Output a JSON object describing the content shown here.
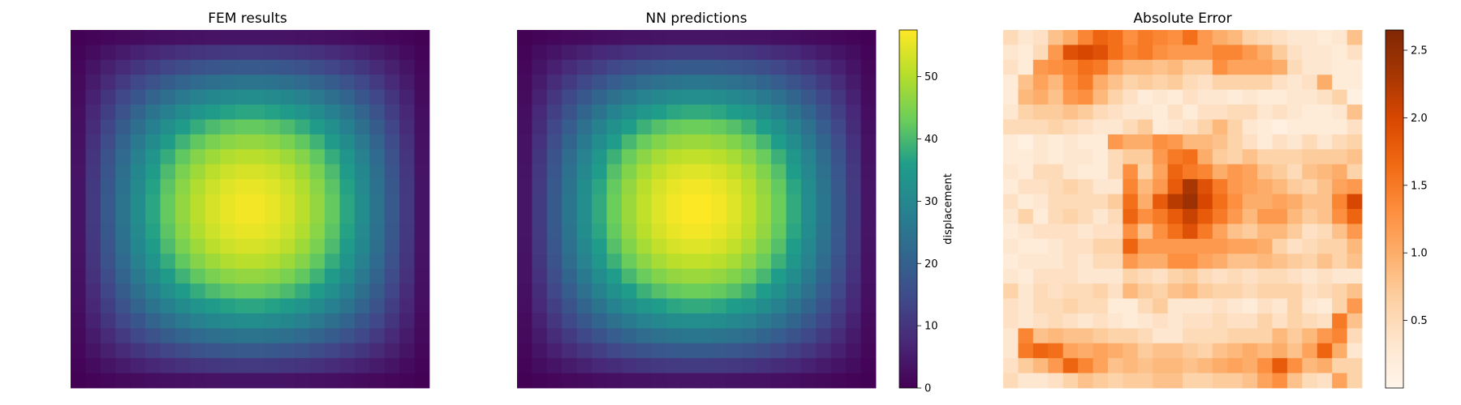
{
  "chart_data": [
    {
      "type": "heatmap",
      "title": "FEM results",
      "grid": [
        24,
        24
      ],
      "field": "displacement",
      "colormap": "viridis",
      "vmin": 0,
      "vmax": 57.5,
      "peak_value": 56.5,
      "axes_visible": false
    },
    {
      "type": "heatmap",
      "title": "NN predictions",
      "grid": [
        24,
        24
      ],
      "field": "displacement",
      "colormap": "viridis",
      "vmin": 0,
      "vmax": 57.5,
      "peak_value": 57.5,
      "axes_visible": false,
      "colorbar": {
        "label": "displacement",
        "ticks": [
          "0",
          "10",
          "20",
          "30",
          "40",
          "50"
        ],
        "tick_values": [
          0,
          10,
          20,
          30,
          40,
          50
        ],
        "range": [
          0,
          57.5
        ]
      }
    },
    {
      "type": "heatmap",
      "title": "Absolute Error",
      "grid": [
        24,
        24
      ],
      "colormap": "Oranges",
      "vmin": 0,
      "vmax": 2.65,
      "axes_visible": false,
      "colorbar": {
        "label": "",
        "ticks": [
          "0.5",
          "1.0",
          "1.5",
          "2.0",
          "2.5"
        ],
        "tick_values": [
          0.5,
          1.0,
          1.5,
          2.0,
          2.5
        ],
        "range": [
          0,
          2.65
        ]
      },
      "rows": [
        [
          0.5,
          0.3,
          0.4,
          0.8,
          1.0,
          1.4,
          1.7,
          1.6,
          1.3,
          1.5,
          1.4,
          1.3,
          1.6,
          1.2,
          1.0,
          0.9,
          0.6,
          0.5,
          0.4,
          0.3,
          0.3,
          0.2,
          0.3,
          0.8
        ],
        [
          0.3,
          0.2,
          0.5,
          1.2,
          1.9,
          2.0,
          1.9,
          1.6,
          1.4,
          1.5,
          1.3,
          1.2,
          1.2,
          1.2,
          1.4,
          1.4,
          1.2,
          1.0,
          0.7,
          0.4,
          0.3,
          0.3,
          0.2,
          0.4
        ],
        [
          0.4,
          0.2,
          1.2,
          1.3,
          1.4,
          1.6,
          1.5,
          1.1,
          0.9,
          0.9,
          0.8,
          0.9,
          0.7,
          0.7,
          1.3,
          1.1,
          1.1,
          1.1,
          1.0,
          0.5,
          0.3,
          0.3,
          0.2,
          0.2
        ],
        [
          0.2,
          0.8,
          1.1,
          0.9,
          1.3,
          1.5,
          1.0,
          0.8,
          0.6,
          0.7,
          0.6,
          0.7,
          0.5,
          0.4,
          0.6,
          0.6,
          0.6,
          0.6,
          0.4,
          0.3,
          0.4,
          1.0,
          0.2,
          0.2
        ],
        [
          0.2,
          0.9,
          1.0,
          0.8,
          1.2,
          1.3,
          0.9,
          0.6,
          0.4,
          0.2,
          0.3,
          0.2,
          0.4,
          0.3,
          0.3,
          0.2,
          0.3,
          0.2,
          0.2,
          0.3,
          0.3,
          0.4,
          0.6,
          0.1
        ],
        [
          0.3,
          0.6,
          0.7,
          0.7,
          0.8,
          0.7,
          0.5,
          0.4,
          0.3,
          0.3,
          0.2,
          0.4,
          0.2,
          0.4,
          0.4,
          0.5,
          0.5,
          0.3,
          0.4,
          0.3,
          0.2,
          0.2,
          0.3,
          0.8
        ],
        [
          0.5,
          0.5,
          0.5,
          0.6,
          0.5,
          0.4,
          0.3,
          0.3,
          0.5,
          0.7,
          0.2,
          0.3,
          0.4,
          0.6,
          0.9,
          0.6,
          0.3,
          0.2,
          0.1,
          0.2,
          0.2,
          0.2,
          0.2,
          0.4
        ],
        [
          0.2,
          0.1,
          0.3,
          0.2,
          0.3,
          0.2,
          0.2,
          1.2,
          1.0,
          1.0,
          1.3,
          1.2,
          0.9,
          0.9,
          0.8,
          0.6,
          0.4,
          0.2,
          0.4,
          0.3,
          0.5,
          0.3,
          0.5,
          0.6
        ],
        [
          0.2,
          0.2,
          0.3,
          0.2,
          0.3,
          0.3,
          0.2,
          0.5,
          0.7,
          0.7,
          1.2,
          1.5,
          1.6,
          1.0,
          0.7,
          0.6,
          0.8,
          0.6,
          0.6,
          0.6,
          0.7,
          0.7,
          0.7,
          0.8
        ],
        [
          0.3,
          0.2,
          0.5,
          0.5,
          0.3,
          0.2,
          0.2,
          0.5,
          1.3,
          0.6,
          1.1,
          1.7,
          1.5,
          1.4,
          1.0,
          1.2,
          1.1,
          0.8,
          0.7,
          0.5,
          0.8,
          0.9,
          1.0,
          0.6
        ],
        [
          0.2,
          0.4,
          0.4,
          0.5,
          0.6,
          0.5,
          0.3,
          0.3,
          1.4,
          0.9,
          1.2,
          1.8,
          2.3,
          1.9,
          1.5,
          1.2,
          1.1,
          1.0,
          0.9,
          0.7,
          0.6,
          0.8,
          1.1,
          1.2
        ],
        [
          0.4,
          0.2,
          0.3,
          0.5,
          0.5,
          0.5,
          0.5,
          0.7,
          1.6,
          1.0,
          1.8,
          2.2,
          2.4,
          2.0,
          1.6,
          1.3,
          1.0,
          1.0,
          1.1,
          1.0,
          0.8,
          0.8,
          1.4,
          2.0
        ],
        [
          0.3,
          0.6,
          0.2,
          0.5,
          0.6,
          0.5,
          0.3,
          0.5,
          1.7,
          1.3,
          1.5,
          1.8,
          2.1,
          1.8,
          1.5,
          1.2,
          0.9,
          1.2,
          1.2,
          0.9,
          0.7,
          0.8,
          1.3,
          1.7
        ],
        [
          0.2,
          0.3,
          0.4,
          0.4,
          0.4,
          0.3,
          0.4,
          0.4,
          1.3,
          0.8,
          1.3,
          1.6,
          1.9,
          1.5,
          1.1,
          0.8,
          0.7,
          0.9,
          0.9,
          0.7,
          0.4,
          0.5,
          0.8,
          1.2
        ],
        [
          0.3,
          0.2,
          0.2,
          0.3,
          0.4,
          0.4,
          0.6,
          0.6,
          1.7,
          1.2,
          1.2,
          1.2,
          1.2,
          1.2,
          1.2,
          1.1,
          1.1,
          1.0,
          0.6,
          0.4,
          0.5,
          0.6,
          0.6,
          0.9
        ],
        [
          0.2,
          0.3,
          0.3,
          0.3,
          0.4,
          0.3,
          0.5,
          0.5,
          1.2,
          1.0,
          1.0,
          1.3,
          1.3,
          1.1,
          1.0,
          0.8,
          0.8,
          0.9,
          0.8,
          0.7,
          0.6,
          0.8,
          0.6,
          0.8
        ],
        [
          0.3,
          0.2,
          0.4,
          0.4,
          0.4,
          0.3,
          0.3,
          0.3,
          0.6,
          0.5,
          0.4,
          0.6,
          0.7,
          0.5,
          0.4,
          0.5,
          0.4,
          0.5,
          0.5,
          0.4,
          0.3,
          0.4,
          0.3,
          0.3
        ],
        [
          0.6,
          0.3,
          0.5,
          0.4,
          0.5,
          0.5,
          0.6,
          0.4,
          0.9,
          0.7,
          0.6,
          0.8,
          0.9,
          0.7,
          0.6,
          0.6,
          0.5,
          0.6,
          0.6,
          0.6,
          0.4,
          0.5,
          0.6,
          0.8
        ],
        [
          0.4,
          0.3,
          0.5,
          0.5,
          0.6,
          0.5,
          0.5,
          0.2,
          0.2,
          0.5,
          0.7,
          0.3,
          0.3,
          0.3,
          0.4,
          0.3,
          0.2,
          0.4,
          0.3,
          0.6,
          0.3,
          0.2,
          0.6,
          1.2
        ],
        [
          0.4,
          0.3,
          0.4,
          0.5,
          0.4,
          0.3,
          0.4,
          0.3,
          0.2,
          0.3,
          0.4,
          0.3,
          0.4,
          0.4,
          0.5,
          0.4,
          0.4,
          0.6,
          0.4,
          0.6,
          0.5,
          0.4,
          1.5,
          0.8
        ],
        [
          0.3,
          1.4,
          0.8,
          0.9,
          0.8,
          0.8,
          0.7,
          0.6,
          0.6,
          0.5,
          0.3,
          0.3,
          0.5,
          0.5,
          0.5,
          0.6,
          0.6,
          0.6,
          0.9,
          0.7,
          0.9,
          1.2,
          1.4,
          0.5
        ],
        [
          0.3,
          1.5,
          1.7,
          1.6,
          1.1,
          1.0,
          1.1,
          1.0,
          0.9,
          0.7,
          0.8,
          0.8,
          0.7,
          0.6,
          0.8,
          0.9,
          1.0,
          0.9,
          1.0,
          0.8,
          1.1,
          1.7,
          1.0,
          0.3
        ],
        [
          0.4,
          0.7,
          0.9,
          1.2,
          1.7,
          1.4,
          1.1,
          0.8,
          0.9,
          0.8,
          0.9,
          0.9,
          0.8,
          0.9,
          1.0,
          1.1,
          1.0,
          1.3,
          1.8,
          1.3,
          0.9,
          1.0,
          0.6,
          0.6
        ],
        [
          0.5,
          0.3,
          0.3,
          0.4,
          0.6,
          0.8,
          0.7,
          0.6,
          0.7,
          0.7,
          0.8,
          0.8,
          0.6,
          0.6,
          0.7,
          0.7,
          0.8,
          1.1,
          1.3,
          0.8,
          0.5,
          0.4,
          1.1,
          0.6
        ]
      ]
    }
  ]
}
